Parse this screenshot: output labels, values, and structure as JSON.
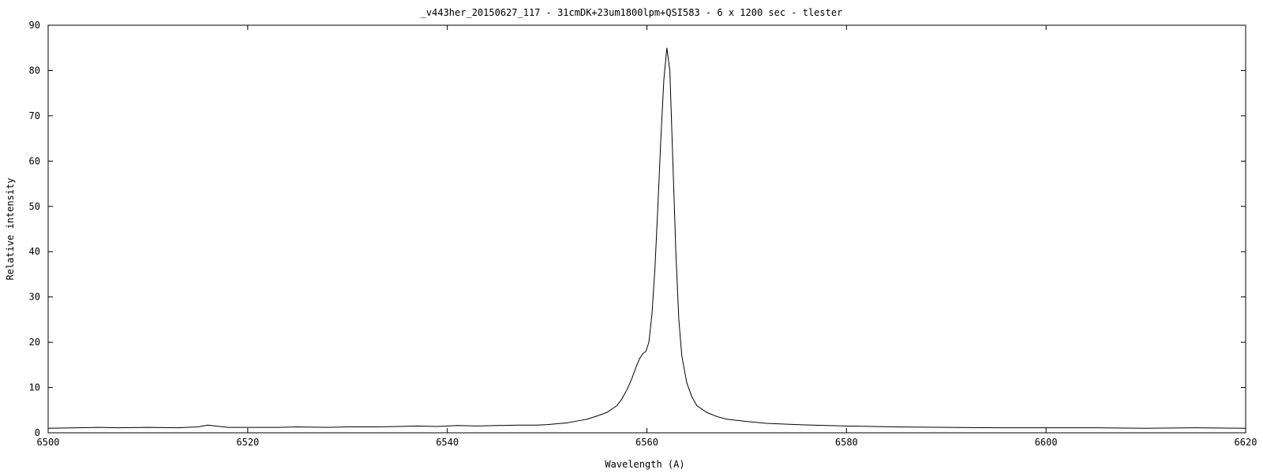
{
  "chart_data": {
    "type": "line",
    "title": "_v443her_20150627_117 - 31cmDK+23um1800lpm+QSI583 - 6 x 1200 sec - tlester",
    "xlabel": "Wavelength (A)",
    "ylabel": "Relative intensity",
    "xlim": [
      6500,
      6620
    ],
    "ylim": [
      0,
      90
    ],
    "x_ticks": [
      "6500",
      "6520",
      "6540",
      "6560",
      "6580",
      "6600",
      "6620"
    ],
    "y_ticks": [
      "0",
      "10",
      "20",
      "30",
      "40",
      "50",
      "60",
      "70",
      "80",
      "90"
    ],
    "grid": false,
    "line_color": "#000000",
    "series": [
      {
        "x": [
          6500,
          6503,
          6505,
          6507,
          6510,
          6513,
          6515,
          6516,
          6518,
          6520,
          6523,
          6525,
          6528,
          6530,
          6533,
          6535,
          6537,
          6539,
          6541,
          6543,
          6545,
          6547,
          6549,
          6550,
          6551,
          6552,
          6553,
          6554,
          6555,
          6556,
          6557,
          6557.5,
          6558,
          6558.5,
          6559,
          6559.3,
          6559.6,
          6559.9,
          6560.2,
          6560.5,
          6560.8,
          6561.1,
          6561.4,
          6561.7,
          6562.0,
          6562.3,
          6562.6,
          6562.9,
          6563.2,
          6563.5,
          6564,
          6564.5,
          6565,
          6566,
          6567,
          6568,
          6570,
          6572,
          6575,
          6578,
          6580,
          6585,
          6590,
          6595,
          6600,
          6605,
          6610,
          6615,
          6620
        ],
        "y": [
          1.0,
          1.1,
          1.2,
          1.1,
          1.2,
          1.1,
          1.3,
          1.7,
          1.2,
          1.2,
          1.2,
          1.3,
          1.2,
          1.3,
          1.3,
          1.4,
          1.5,
          1.4,
          1.6,
          1.5,
          1.6,
          1.7,
          1.7,
          1.8,
          2.0,
          2.2,
          2.6,
          3.0,
          3.7,
          4.5,
          6.0,
          7.5,
          9.5,
          12.0,
          15.0,
          16.5,
          17.5,
          18.0,
          20.0,
          26.0,
          36.0,
          50.0,
          65.0,
          78.0,
          85.0,
          80.0,
          60.0,
          40.0,
          25.0,
          17.0,
          11.0,
          8.0,
          6.0,
          4.5,
          3.6,
          3.0,
          2.5,
          2.1,
          1.8,
          1.6,
          1.5,
          1.3,
          1.2,
          1.1,
          1.1,
          1.1,
          1.0,
          1.1,
          1.0
        ]
      }
    ]
  }
}
